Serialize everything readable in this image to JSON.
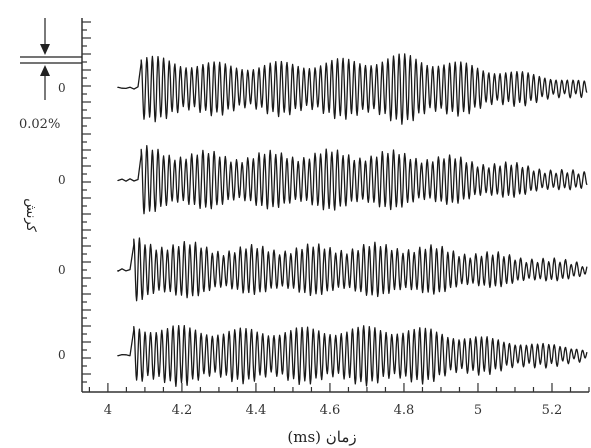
{
  "chart_data": {
    "type": "line",
    "xlabel": "زمان (ms)",
    "ylabel": "کرنش",
    "xlim": [
      3.93,
      5.3
    ],
    "xticks": [
      "4",
      "4.2",
      "4.4",
      "4.6",
      "4.8",
      "5",
      "5.2"
    ],
    "xtick_values": [
      4.0,
      4.2,
      4.4,
      4.6,
      4.8,
      5.0,
      5.2
    ],
    "scale_bar_label": "0.02%",
    "zero_label": "0",
    "grid": false,
    "series": [
      {
        "baseline": "0",
        "onset_ms": 4.09,
        "peak_amplitude": 0.012,
        "freq_khz": 66,
        "envelope": [
          1.0,
          0.75,
          0.85,
          1.05,
          0.6,
          0.2
        ]
      },
      {
        "baseline": "0",
        "onset_ms": 4.09,
        "peak_amplitude": 0.012,
        "freq_khz": 66,
        "envelope": [
          1.0,
          0.8,
          0.9,
          0.85,
          0.55,
          0.2
        ]
      },
      {
        "baseline": "0",
        "onset_ms": 4.07,
        "peak_amplitude": 0.011,
        "freq_khz": 66,
        "envelope": [
          1.0,
          0.7,
          0.75,
          0.8,
          0.5,
          0.2
        ]
      },
      {
        "baseline": "0",
        "onset_ms": 4.07,
        "peak_amplitude": 0.011,
        "freq_khz": 66,
        "envelope": [
          1.0,
          0.8,
          0.85,
          0.9,
          0.5,
          0.2
        ]
      }
    ]
  }
}
